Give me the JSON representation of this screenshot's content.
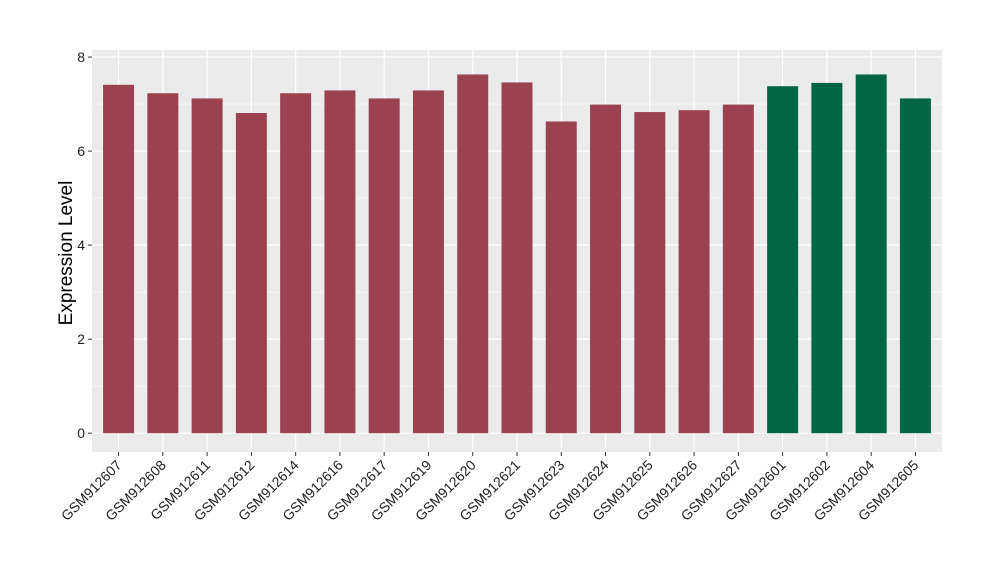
{
  "chart_data": {
    "type": "bar",
    "title": "",
    "xlabel": "",
    "ylabel": "Expression Level",
    "ylim": [
      -0.4,
      8.15
    ],
    "yticks": [
      0,
      2,
      4,
      6,
      8
    ],
    "grid": true,
    "categories": [
      "GSM912607",
      "GSM912608",
      "GSM912611",
      "GSM912612",
      "GSM912614",
      "GSM912616",
      "GSM912617",
      "GSM912619",
      "GSM912620",
      "GSM912621",
      "GSM912623",
      "GSM912624",
      "GSM912625",
      "GSM912626",
      "GSM912627",
      "GSM912601",
      "GSM912602",
      "GSM912604",
      "GSM912605"
    ],
    "values": [
      7.41,
      7.23,
      7.12,
      6.81,
      7.23,
      7.29,
      7.12,
      7.29,
      7.63,
      7.46,
      6.63,
      6.99,
      6.83,
      6.87,
      6.99,
      7.38,
      7.45,
      7.63,
      7.12
    ],
    "groups": [
      "a",
      "a",
      "a",
      "a",
      "a",
      "a",
      "a",
      "a",
      "a",
      "a",
      "a",
      "a",
      "a",
      "a",
      "a",
      "b",
      "b",
      "b",
      "b"
    ],
    "group_colors": {
      "a": "#9b4251",
      "b": "#006644"
    }
  }
}
